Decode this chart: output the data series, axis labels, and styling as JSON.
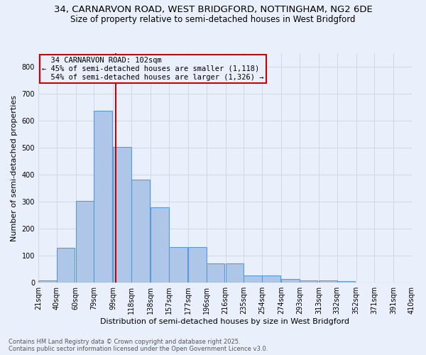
{
  "title_line1": "34, CARNARVON ROAD, WEST BRIDGFORD, NOTTINGHAM, NG2 6DE",
  "title_line2": "Size of property relative to semi-detached houses in West Bridgford",
  "xlabel": "Distribution of semi-detached houses by size in West Bridgford",
  "ylabel": "Number of semi-detached properties",
  "footnote": "Contains HM Land Registry data © Crown copyright and database right 2025.\nContains public sector information licensed under the Open Government Licence v3.0.",
  "bar_left_edges": [
    21,
    40,
    60,
    79,
    99,
    118,
    138,
    157,
    177,
    196,
    216,
    235,
    254,
    274,
    293,
    313,
    332,
    352,
    371,
    391
  ],
  "bar_heights": [
    8,
    128,
    302,
    638,
    502,
    383,
    278,
    131,
    131,
    70,
    70,
    25,
    25,
    12,
    8,
    8,
    5,
    0,
    0,
    0
  ],
  "bin_width": 19,
  "bar_color": "#aec6e8",
  "bar_edge_color": "#5b9bd5",
  "grid_color": "#d0d8e8",
  "background_color": "#eaf0fb",
  "property_label": "34 CARNARVON ROAD: 102sqm",
  "pct_smaller": 45,
  "n_smaller": 1118,
  "pct_larger": 54,
  "n_larger": 1326,
  "vline_color": "#cc0000",
  "vline_x": 102,
  "annotation_box_color": "#cc0000",
  "ylim": [
    0,
    850
  ],
  "yticks": [
    0,
    100,
    200,
    300,
    400,
    500,
    600,
    700,
    800
  ],
  "x_labels": [
    "21sqm",
    "40sqm",
    "60sqm",
    "79sqm",
    "99sqm",
    "118sqm",
    "138sqm",
    "157sqm",
    "177sqm",
    "196sqm",
    "216sqm",
    "235sqm",
    "254sqm",
    "274sqm",
    "293sqm",
    "313sqm",
    "332sqm",
    "352sqm",
    "371sqm",
    "391sqm",
    "410sqm"
  ],
  "title_fontsize": 9.5,
  "subtitle_fontsize": 8.5,
  "axis_label_fontsize": 8,
  "tick_fontsize": 7,
  "annotation_fontsize": 7.5,
  "footnote_fontsize": 6
}
